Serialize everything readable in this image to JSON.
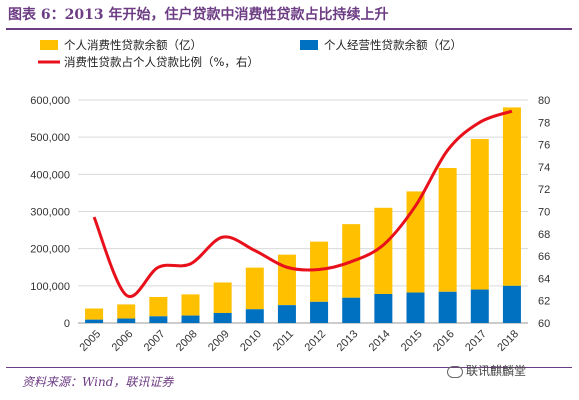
{
  "header": {
    "title": "图表 6：2013 年开始，住户贷款中消费性贷款占比持续上升"
  },
  "footer": {
    "source": "资料来源：Wind，联讯证券",
    "watermark": "联讯麒麟堂"
  },
  "colors": {
    "consumer": "#FFC000",
    "business": "#0070C0",
    "ratio": "#E8101A",
    "grid": "#d9d9d9",
    "accent": "#6d3d84"
  },
  "chart_data": {
    "type": "bar",
    "stacked": true,
    "categories": [
      "2005",
      "2006",
      "2007",
      "2008",
      "2009",
      "2010",
      "2011",
      "2012",
      "2013",
      "2014",
      "2015",
      "2016",
      "2017",
      "2018"
    ],
    "series": [
      {
        "name": "个人消费性贷款余额（亿）",
        "type": "bar",
        "axis": "left",
        "values": [
          30000,
          38000,
          52000,
          57000,
          82000,
          112000,
          136000,
          162000,
          198000,
          232000,
          272000,
          333000,
          405000,
          480000
        ]
      },
      {
        "name": "个人经营性贷款余额（亿）",
        "type": "bar",
        "axis": "left",
        "values": [
          9000,
          12000,
          18000,
          20000,
          27000,
          37000,
          48000,
          57000,
          68000,
          78000,
          82000,
          84000,
          90000,
          100000
        ]
      },
      {
        "name": "消费性贷款占个人贷款比例（%，右）",
        "type": "line",
        "axis": "right",
        "values": [
          69.5,
          62.5,
          65.0,
          65.3,
          67.7,
          66.5,
          65.0,
          64.8,
          65.5,
          67.0,
          70.5,
          75.5,
          78.0,
          79.0
        ]
      }
    ],
    "yleft": {
      "ticks": [
        "600,000",
        "500,000",
        "400,000",
        "300,000",
        "200,000",
        "100,000",
        "0"
      ],
      "lim": [
        0,
        600000
      ]
    },
    "yright": {
      "ticks": [
        "80",
        "78",
        "76",
        "74",
        "72",
        "70",
        "68",
        "66",
        "64",
        "62",
        "60"
      ],
      "lim": [
        60,
        80
      ]
    },
    "grid": true,
    "legend_position": "top"
  }
}
